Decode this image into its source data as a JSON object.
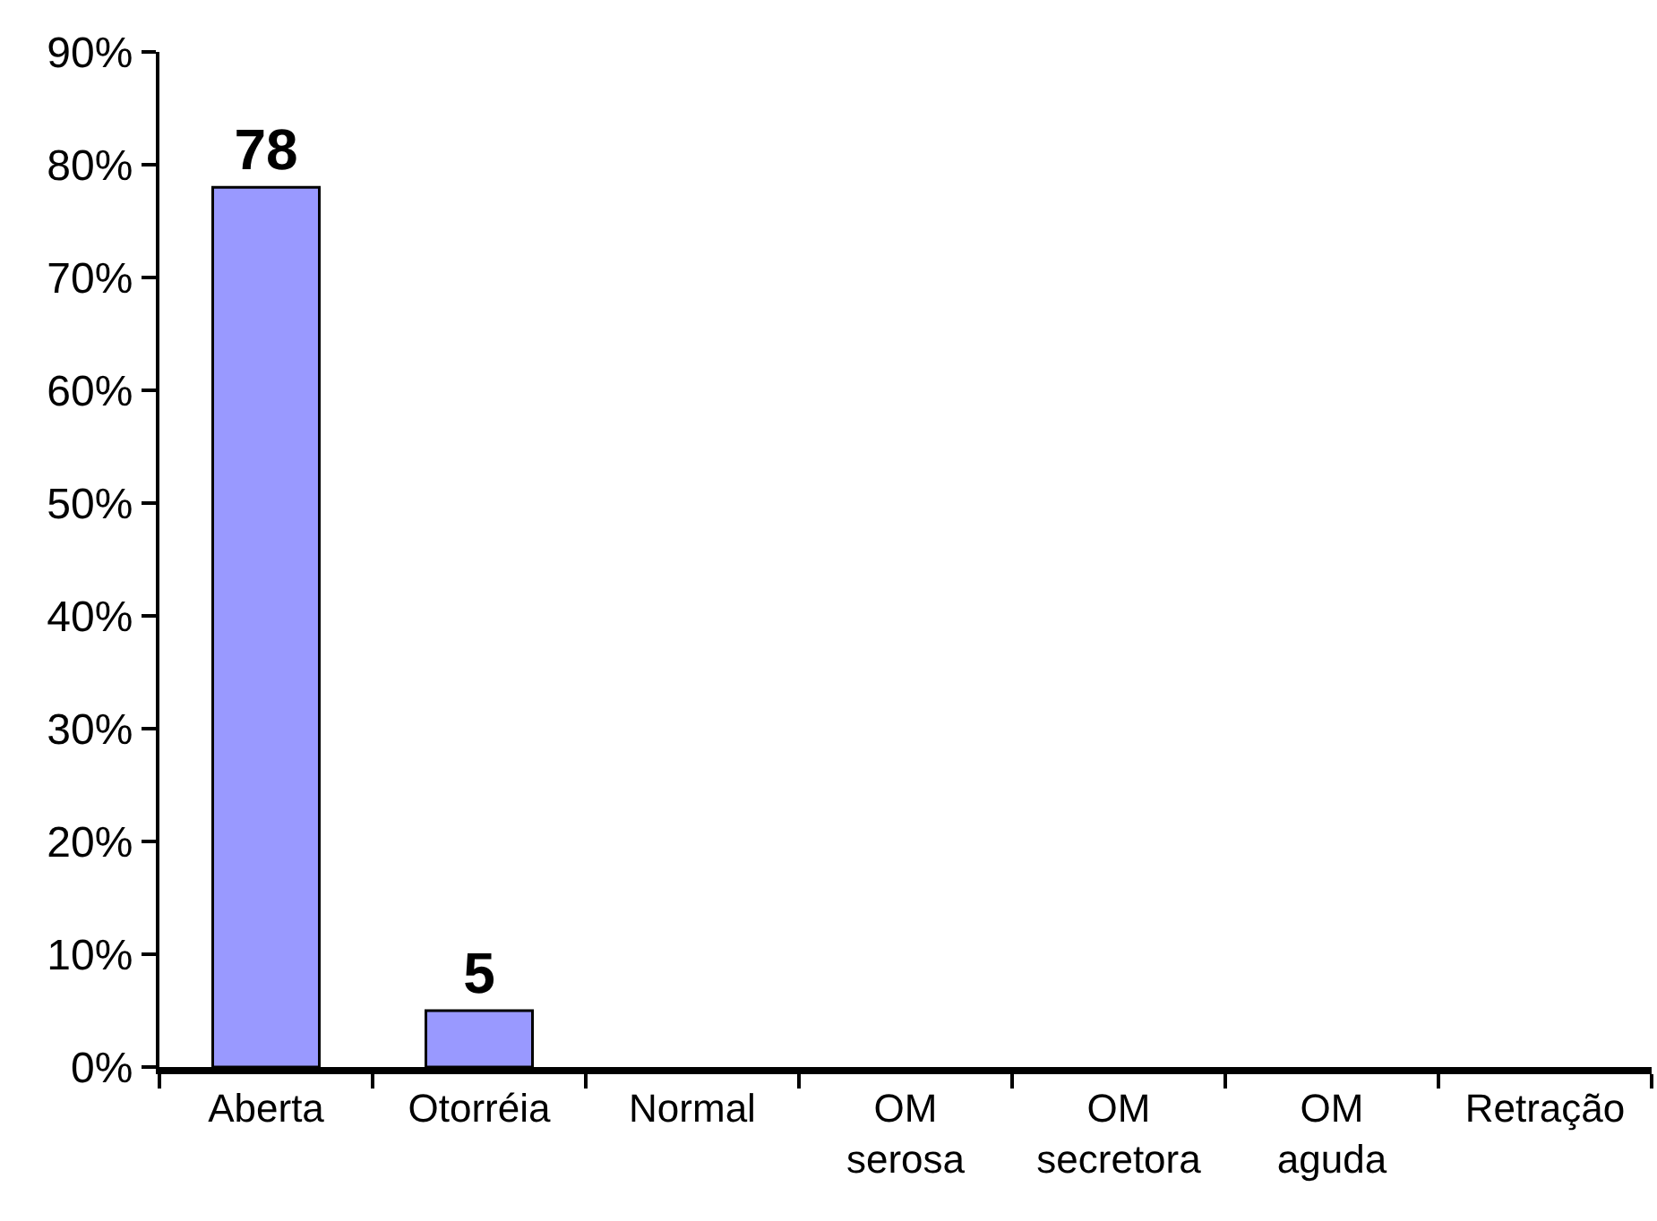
{
  "chart_data": {
    "type": "bar",
    "categories": [
      "Aberta",
      "Otorréia",
      "Normal",
      "OM serosa",
      "OM secretora",
      "OM aguda",
      "Retração"
    ],
    "values": [
      78,
      5,
      0,
      0,
      0,
      0,
      0
    ],
    "value_labels": [
      "78",
      "5",
      null,
      null,
      null,
      null,
      null
    ],
    "color": "#9999ff",
    "ylim": [
      0,
      90
    ],
    "yticks": [
      {
        "value": 0,
        "label": "0%"
      },
      {
        "value": 10,
        "label": "10%"
      },
      {
        "value": 20,
        "label": "20%"
      },
      {
        "value": 30,
        "label": "30%"
      },
      {
        "value": 40,
        "label": "40%"
      },
      {
        "value": 50,
        "label": "50%"
      },
      {
        "value": 60,
        "label": "60%"
      },
      {
        "value": 70,
        "label": "70%"
      },
      {
        "value": 80,
        "label": "80%"
      },
      {
        "value": 90,
        "label": "90%"
      }
    ]
  }
}
